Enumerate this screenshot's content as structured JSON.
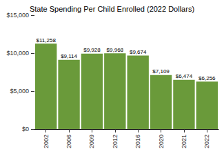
{
  "chart_data": {
    "type": "bar",
    "title": "State Spending Per Child Enrolled (2022 Dollars)",
    "categories": [
      "2002",
      "2006",
      "2009",
      "2012",
      "2016",
      "2020",
      "2021",
      "2022"
    ],
    "values": [
      11258,
      9114,
      9928,
      9968,
      9674,
      7109,
      6474,
      6256
    ],
    "value_labels": [
      "$11,258",
      "$9,114",
      "$9,928",
      "$9,968",
      "$9,674",
      "$7,109",
      "$6,474",
      "$6,256"
    ],
    "color": "#6a9a3a",
    "ylim": [
      0,
      15000
    ],
    "yticks": [
      {
        "value": 0,
        "label": "$0"
      },
      {
        "value": 5000,
        "label": "$5,000"
      },
      {
        "value": 10000,
        "label": "$10,000"
      },
      {
        "value": 15000,
        "label": "$15,000"
      }
    ],
    "grid": false,
    "data_labels": true
  }
}
